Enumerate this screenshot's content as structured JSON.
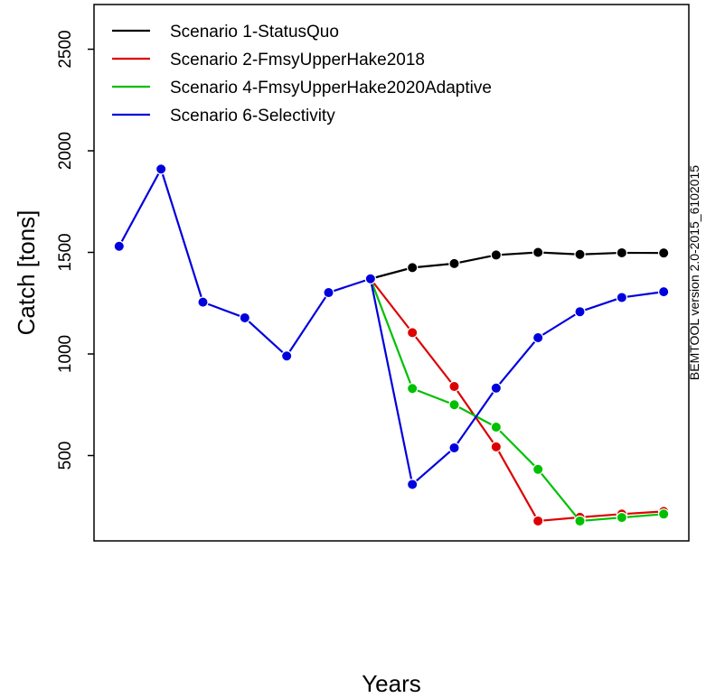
{
  "chart_data": {
    "type": "line",
    "title": "",
    "xlabel": "Years",
    "ylabel": "Catch [tons]",
    "side_note": "BEMTOOL version 2.0-2015_6102015",
    "x": [
      1,
      2,
      3,
      4,
      5,
      6,
      7,
      8,
      9,
      10,
      11,
      12,
      13,
      14
    ],
    "xlim": [
      0.4,
      14.6
    ],
    "ylim": [
      80,
      2720
    ],
    "yticks": [
      500,
      1000,
      1500,
      2000,
      2500
    ],
    "grid": false,
    "legend_position": "top-left",
    "series": [
      {
        "name": "Scenario 1-StatusQuo",
        "color": "#000000",
        "x": [
          7,
          8,
          9,
          10,
          11,
          12,
          13,
          14
        ],
        "values": [
          1370,
          1425,
          1445,
          1487,
          1500,
          1490,
          1498,
          1497
        ]
      },
      {
        "name": "Scenario 2-FmsyUpperHake2018",
        "color": "#dd0000",
        "x": [
          7,
          8,
          9,
          10,
          11,
          12,
          13,
          14
        ],
        "values": [
          1370,
          1105,
          840,
          543,
          178,
          196,
          212,
          225
        ]
      },
      {
        "name": "Scenario 4-FmsyUpperHake2020Adaptive",
        "color": "#00c000",
        "x": [
          7,
          8,
          9,
          10,
          11,
          12,
          13,
          14
        ],
        "values": [
          1370,
          830,
          750,
          640,
          432,
          178,
          195,
          212
        ]
      },
      {
        "name": "Scenario 6-Selectivity",
        "color": "#0000dd",
        "x": [
          1,
          2,
          3,
          4,
          5,
          6,
          7,
          8,
          9,
          10,
          11,
          12,
          13,
          14
        ],
        "values": [
          1530,
          1910,
          1255,
          1178,
          990,
          1302,
          1370,
          358,
          538,
          832,
          1080,
          1208,
          1278,
          1306
        ]
      }
    ]
  }
}
